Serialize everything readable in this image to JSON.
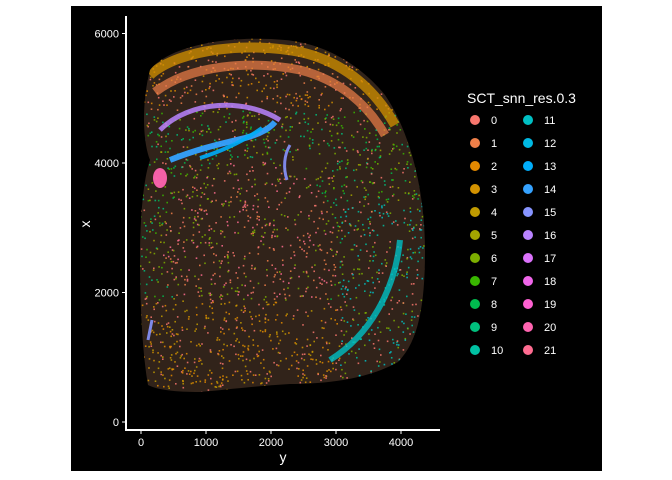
{
  "chart_data": {
    "type": "scatter",
    "title": "",
    "xlabel": "y",
    "ylabel": "x",
    "xlim": [
      -200,
      4600
    ],
    "ylim": [
      -150,
      6300
    ],
    "x_ticks": [
      0,
      1000,
      2000,
      3000,
      4000
    ],
    "x_tick_labels": [
      "0",
      "1000",
      "2000",
      "3000",
      "4000"
    ],
    "y_ticks": [
      0,
      2000,
      4000,
      6000
    ],
    "y_tick_labels": [
      "0",
      "2000",
      "4000",
      "6000"
    ],
    "grid": false,
    "background": "#000000",
    "legend": {
      "title": "SCT_snn_res.0.3",
      "placement": "right",
      "entries": [
        {
          "label": "0",
          "color": "#F8766D"
        },
        {
          "label": "1",
          "color": "#EF7F49"
        },
        {
          "label": "2",
          "color": "#E38900"
        },
        {
          "label": "3",
          "color": "#D39200"
        },
        {
          "label": "4",
          "color": "#C09B00"
        },
        {
          "label": "5",
          "color": "#A3A500"
        },
        {
          "label": "6",
          "color": "#7CAE00"
        },
        {
          "label": "7",
          "color": "#39B600"
        },
        {
          "label": "8",
          "color": "#00BB4E"
        },
        {
          "label": "9",
          "color": "#00BF7D"
        },
        {
          "label": "10",
          "color": "#00C1A3"
        },
        {
          "label": "11",
          "color": "#00BFC4"
        },
        {
          "label": "12",
          "color": "#00B9E3"
        },
        {
          "label": "13",
          "color": "#00ADFA"
        },
        {
          "label": "14",
          "color": "#35A2FF"
        },
        {
          "label": "15",
          "color": "#8794FF"
        },
        {
          "label": "16",
          "color": "#B983FF"
        },
        {
          "label": "17",
          "color": "#DB72FB"
        },
        {
          "label": "18",
          "color": "#F066EA"
        },
        {
          "label": "19",
          "color": "#FD61D1"
        },
        {
          "label": "20",
          "color": "#FF64B0"
        },
        {
          "label": "21",
          "color": "#FF6C91"
        }
      ]
    }
  }
}
